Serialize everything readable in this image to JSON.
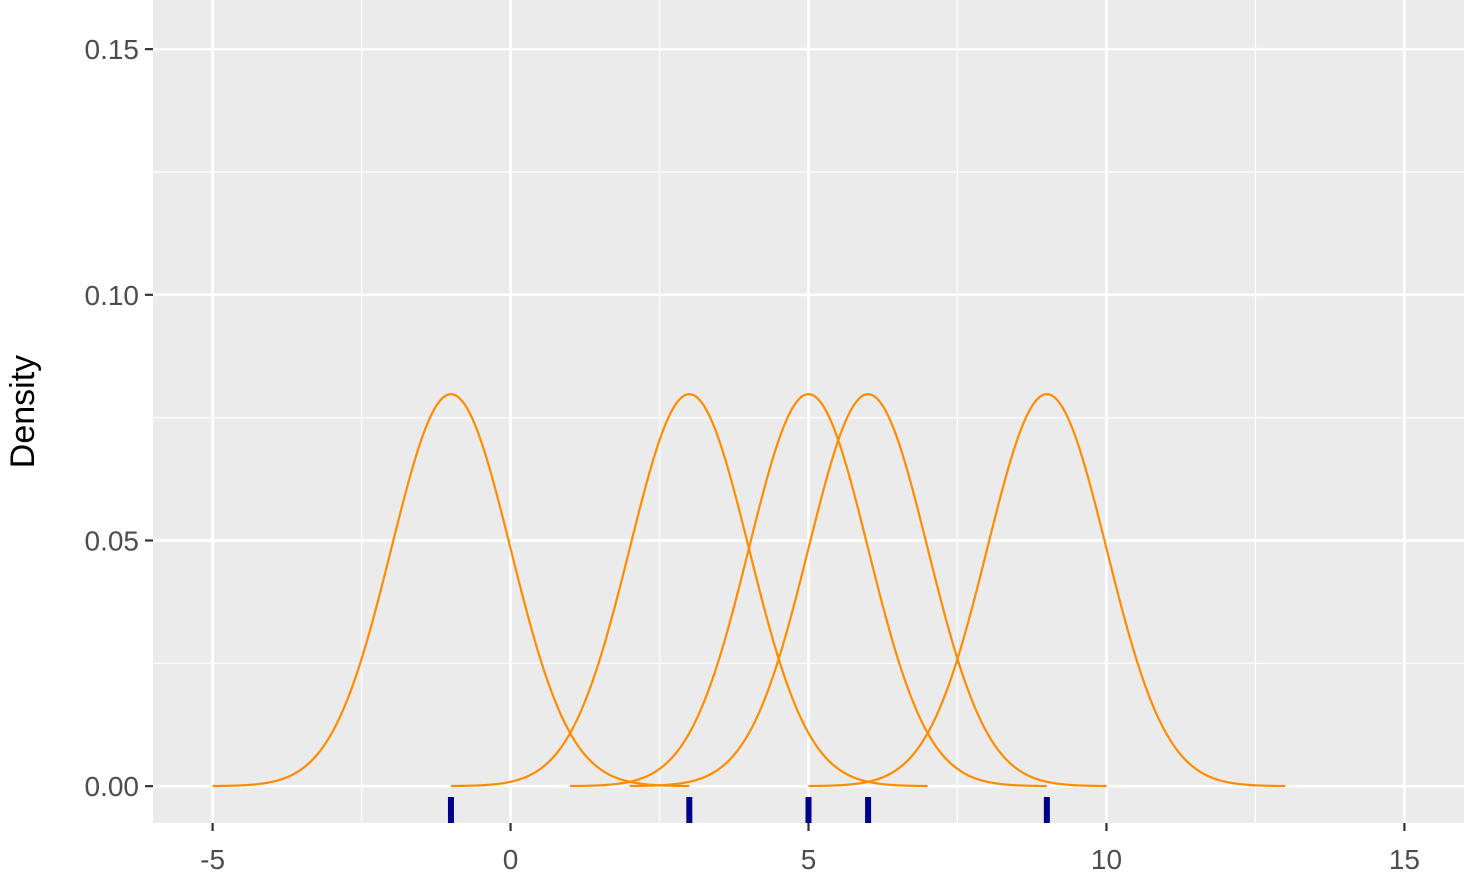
{
  "chart_data": {
    "type": "line",
    "title": "",
    "xlabel": "",
    "ylabel": "Density",
    "xlim": [
      -6.0,
      16.0
    ],
    "ylim": [
      -0.0075,
      0.16
    ],
    "x_ticks": [
      -5,
      0,
      5,
      10,
      15
    ],
    "x_tick_labels": [
      "-5",
      "0",
      "5",
      "10",
      "15"
    ],
    "y_ticks": [
      0.0,
      0.05,
      0.1,
      0.15
    ],
    "y_tick_labels": [
      "0.00",
      "0.05",
      "0.10",
      "0.15"
    ],
    "grid": true,
    "legend": "none",
    "kernels": {
      "shape": "gaussian",
      "sd": 1,
      "scale": 0.2,
      "half_width": 4,
      "centers": [
        -1,
        3,
        5,
        6,
        9
      ]
    },
    "rug": [
      -1,
      3,
      5,
      6,
      9
    ],
    "colors": {
      "curve": "#FF8C00",
      "rug": "#00008B",
      "panel": "#EBEBEB",
      "grid": "#FFFFFF"
    }
  }
}
